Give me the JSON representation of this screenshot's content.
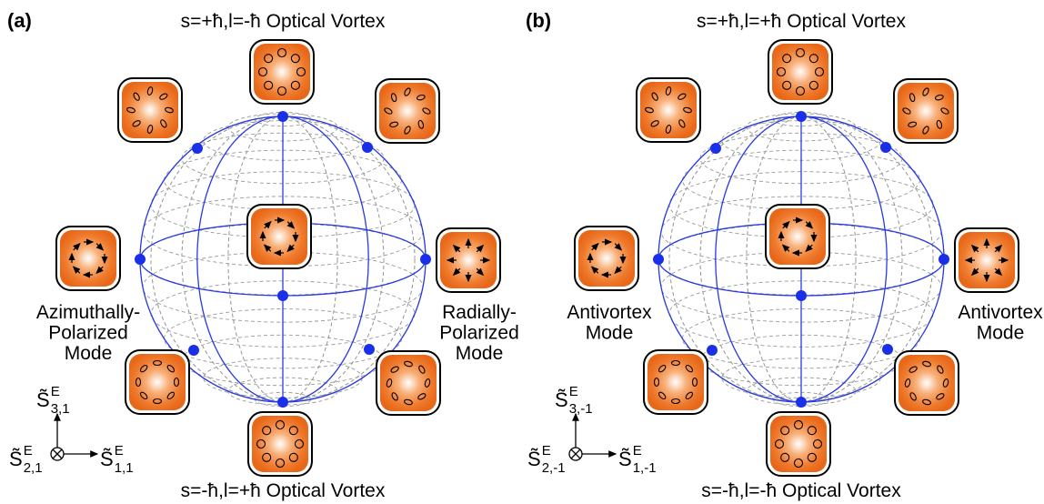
{
  "panels": [
    {
      "label": "(a)",
      "top": "s=+ħ,l=-ħ Optical Vortex",
      "bottom": "s=-ħ,l=+ħ Optical Vortex",
      "left": [
        "Azimuthally-",
        "Polarized",
        "Mode"
      ],
      "right": [
        "Radially-",
        "Polarized",
        "Mode"
      ],
      "axes": {
        "up": {
          "symbol": "S̃",
          "sub": "3,1",
          "sup": "E"
        },
        "out": {
          "symbol": "S̃",
          "sub": "2,1",
          "sup": "E"
        },
        "side": {
          "symbol": "S̃",
          "sub": "1,1",
          "sup": "E"
        }
      }
    },
    {
      "label": "(b)",
      "top": "s=+ħ,l=+ħ Optical Vortex",
      "bottom": "s=-ħ,l=-ħ Optical Vortex",
      "left": [
        "Antivortex",
        "Mode"
      ],
      "right": [
        "Antivortex",
        "Mode"
      ],
      "axes": {
        "up": {
          "symbol": "S̃",
          "sub": "3,-1",
          "sup": "E"
        },
        "out": {
          "symbol": "S̃",
          "sub": "2,-1",
          "sup": "E"
        },
        "side": {
          "symbol": "S̃",
          "sub": "1,-1",
          "sup": "E"
        }
      }
    }
  ]
}
